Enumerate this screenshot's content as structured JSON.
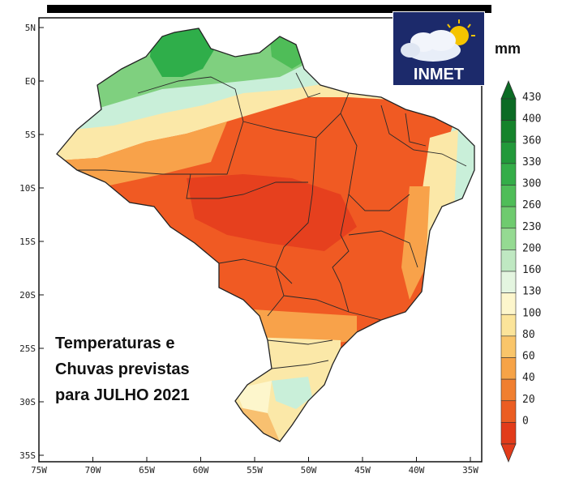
{
  "map": {
    "caption_lines": [
      "Temperaturas e",
      "Chuvas previstas",
      "para JULHO 2021"
    ],
    "lat_ticks": [
      "5N",
      "EQ",
      "5S",
      "10S",
      "15S",
      "20S",
      "25S",
      "30S",
      "35S"
    ],
    "lon_ticks": [
      "75W",
      "70W",
      "65W",
      "60W",
      "55W",
      "50W",
      "45W",
      "40W",
      "35W"
    ],
    "region_colors": {
      "ocean": "#ffffff",
      "very_wet": "#2fae4a",
      "wet": "#7fd07f",
      "moist": "#c9efd9",
      "mid": "#fbe8a8",
      "dry": "#f8a24a",
      "very_dry": "#f05a23",
      "driest": "#e6401e"
    }
  },
  "logo": {
    "name": "INMET",
    "background": "#1c2a6b"
  },
  "legend": {
    "unit": "mm",
    "labels": [
      "430",
      "400",
      "360",
      "330",
      "300",
      "260",
      "230",
      "200",
      "160",
      "130",
      "100",
      "80",
      "60",
      "40",
      "20",
      "0"
    ],
    "colors": [
      "#0b6b24",
      "#15832b",
      "#22993a",
      "#34ad48",
      "#4fbd58",
      "#6fcb6f",
      "#95da92",
      "#bfe8c2",
      "#e4f5e0",
      "#fdf6cc",
      "#fbe49a",
      "#f9c56a",
      "#f6a347",
      "#f07f30",
      "#eb5d22",
      "#e23b1a"
    ]
  }
}
